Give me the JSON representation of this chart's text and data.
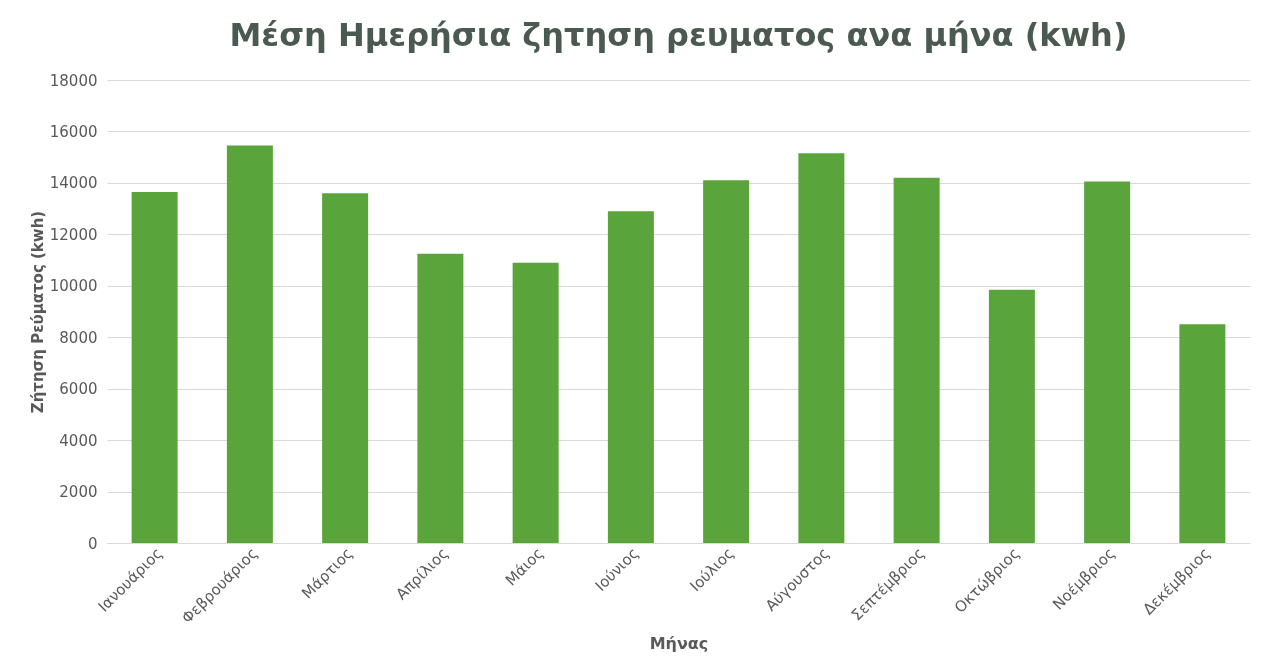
{
  "chart_data": {
    "type": "bar",
    "title": "Μέση Ημερήσια ζητηση ρευματος ανα μήνα (kwh)",
    "xlabel": "Μήνας",
    "ylabel": "Ζήτηση Ρεύματος  (kwh)",
    "categories": [
      "Ιανουάριος",
      "Φεβρουάριος",
      "Μάρτιος",
      "Απρίλιος",
      "Μάιος",
      "Ιούνιος",
      "Ιούλιος",
      "Αύγουστος",
      "Σεπτέμβριος",
      "Οκτώβριος",
      "Νοέμβριος",
      "Δεκέμβριος"
    ],
    "values": [
      13650,
      15450,
      13600,
      11250,
      10900,
      12900,
      14100,
      15150,
      14200,
      9850,
      14050,
      8500
    ],
    "color": "#5aa43c",
    "ylim": [
      0,
      18000
    ],
    "yticks": [
      0,
      2000,
      4000,
      6000,
      8000,
      10000,
      12000,
      14000,
      16000,
      18000
    ],
    "grid": "y"
  }
}
